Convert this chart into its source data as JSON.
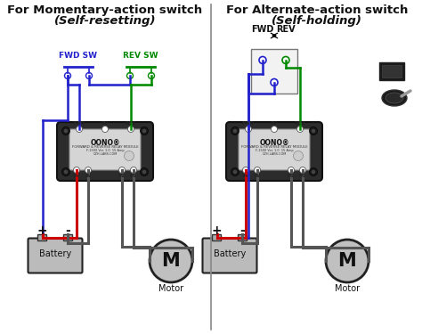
{
  "title_left1": "For Momentary-action switch",
  "title_left2": "(Self-resetting)",
  "title_right1": "For Alternate-action switch",
  "title_right2": "(Self-holding)",
  "blue": "#2222cc",
  "green": "#008800",
  "red": "#cc0000",
  "gray_wire": "#555555",
  "bg": "#f0f0f0",
  "relay_dark": "#2a2a2a",
  "relay_light": "#d8d8d8",
  "battery_fill": "#b0b0b0",
  "motor_fill": "#c0c0c0"
}
